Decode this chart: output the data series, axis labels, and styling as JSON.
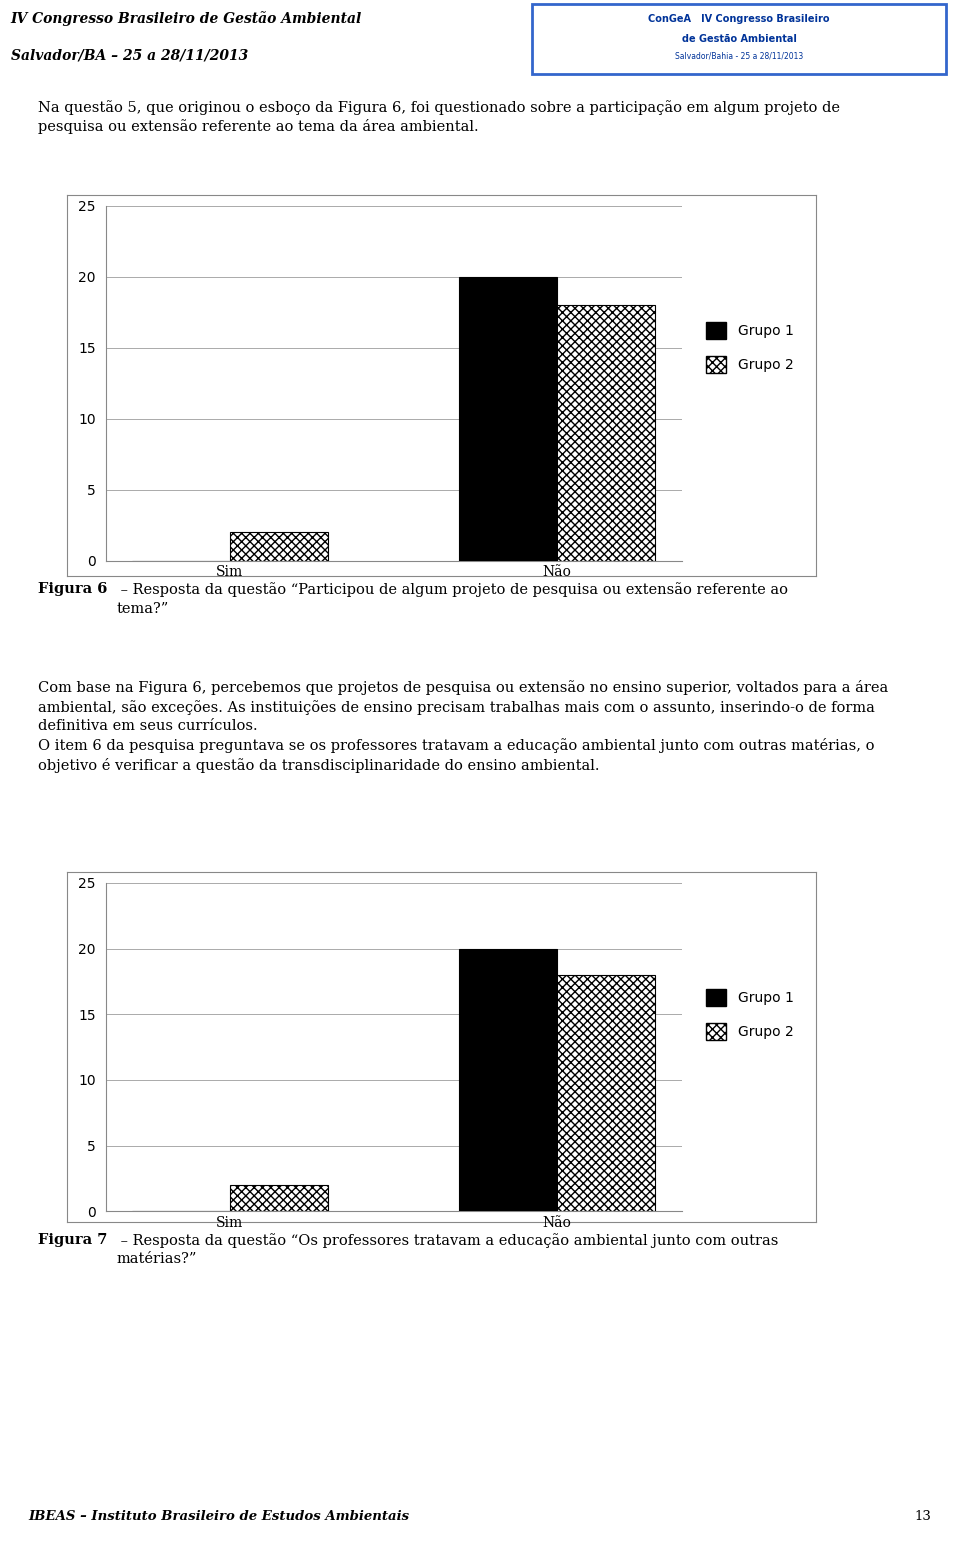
{
  "fig6": {
    "categories": [
      "Sim",
      "Não"
    ],
    "grupo1": [
      0,
      20
    ],
    "grupo2": [
      2,
      18
    ],
    "ylim": [
      0,
      25
    ],
    "yticks": [
      0,
      5,
      10,
      15,
      20,
      25
    ],
    "caption_bold": "Figura 6",
    "caption_rest": " – Resposta da questão “Participou de algum projeto de pesquisa ou extensão referente ao\ntema?”"
  },
  "fig7": {
    "categories": [
      "Sim",
      "Não"
    ],
    "grupo1": [
      0,
      20
    ],
    "grupo2": [
      2,
      18
    ],
    "ylim": [
      0,
      25
    ],
    "yticks": [
      0,
      5,
      10,
      15,
      20,
      25
    ],
    "caption_bold": "Figura 7",
    "caption_rest": " – Resposta da questão “Os professores tratavam a educação ambiental junto com outras\nmatérias?”"
  },
  "legend_labels": [
    "Grupo 1",
    "Grupo 2"
  ],
  "header_text": "Na questão 5, que originou o esboço da Figura 6, foi questionado sobre a participação em algum projeto de\npesquisa ou extensão referente ao tema da área ambiental.",
  "body_text": "Com base na Figura 6, percebemos que projetos de pesquisa ou extensão no ensino superior, voltados para a área\nambiental, são exceções. As instituições de ensino precisam trabalhas mais com o assunto, inserindo-o de forma\ndefinitiva em seus currículos.\nO item 6 da pesquisa preguntava se os professores tratavam a educação ambiental junto com outras matérias, o\nobjetivo é verificar a questão da transdisciplinaridade do ensino ambiental.",
  "footer_text": "IBEAS – Instituto Brasileiro de Estudos Ambientais",
  "page_number": "13",
  "title_left_line1": "IV Congresso Brasileiro de Gestão Ambiental",
  "title_left_line2": "Salvador/BA – 25 a 28/11/2013",
  "bar_width": 0.3,
  "background_color": "#ffffff",
  "grid_color": "#aaaaaa",
  "font_size_body": 10.5,
  "font_size_caption": 10.5,
  "font_size_axis": 10,
  "font_size_header": 10
}
